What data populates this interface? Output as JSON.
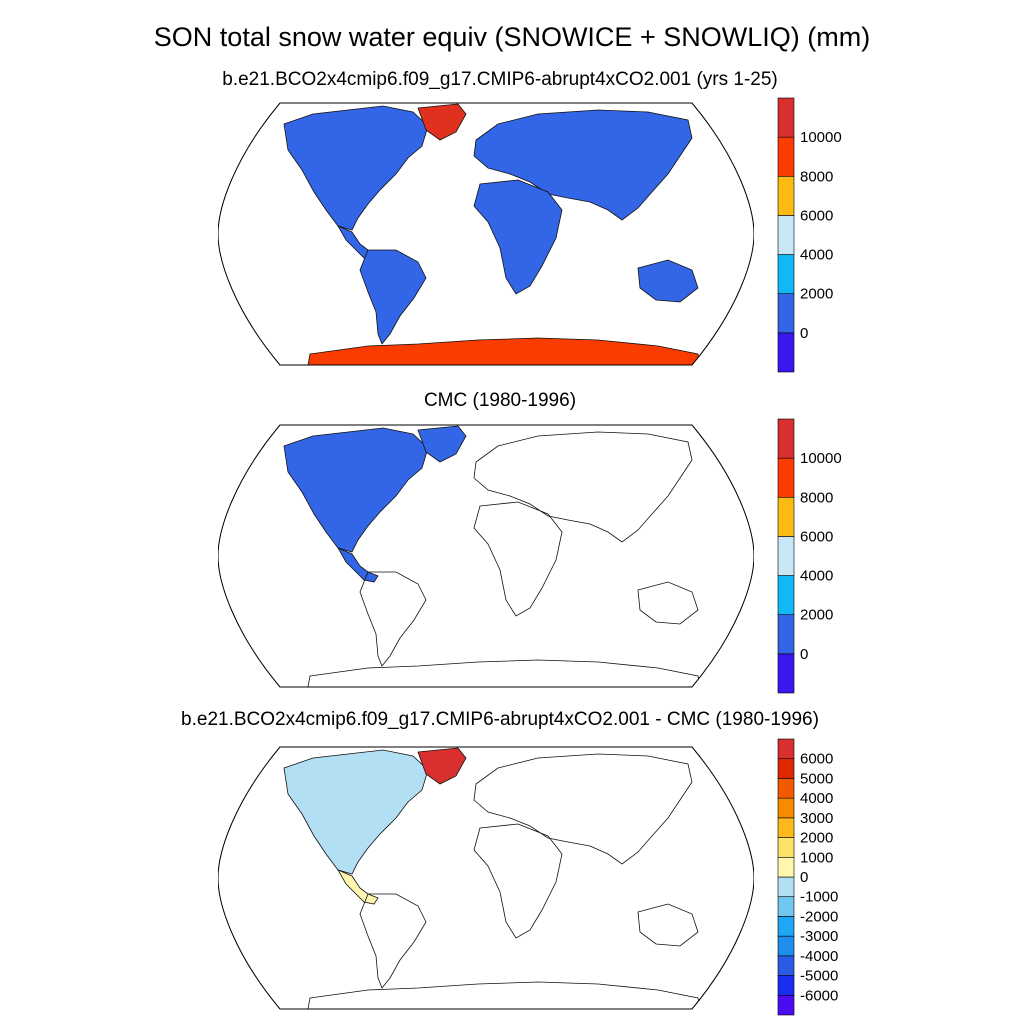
{
  "title": "SON total snow water equiv (SNOWICE + SNOWLIQ) (mm)",
  "panels": [
    {
      "title": "b.e21.BCO2x4cmip6.f09_g17.CMIP6-abrupt4xCO2.001 (yrs 1-25)",
      "colorbar": {
        "colors": [
          "#3a16f0",
          "#3366e6",
          "#12b8f5",
          "#c8e6f6",
          "#fbbb12",
          "#fa3c00",
          "#d92f2f"
        ],
        "labels": [
          "0",
          "2000",
          "4000",
          "6000",
          "8000",
          "10000"
        ]
      }
    },
    {
      "title": "CMC (1980-1996)",
      "colorbar": {
        "colors": [
          "#3a16f0",
          "#3366e6",
          "#12b8f5",
          "#c8e6f6",
          "#fbbb12",
          "#fa3c00",
          "#d92f2f"
        ],
        "labels": [
          "0",
          "2000",
          "4000",
          "6000",
          "8000",
          "10000"
        ]
      }
    },
    {
      "title": "b.e21.BCO2x4cmip6.f09_g17.CMIP6-abrupt4xCO2.001 - CMC (1980-1996)",
      "colorbar": {
        "colors": [
          "#4b0cf2",
          "#1a2ef0",
          "#2b5ce8",
          "#1f8fee",
          "#1ea7f5",
          "#70c7f2",
          "#b3dff4",
          "#fff7b0",
          "#fde26a",
          "#fcb91c",
          "#f78b00",
          "#f25a00",
          "#e02800",
          "#d92f2f"
        ],
        "labels": [
          "-6000",
          "-5000",
          "-4000",
          "-3000",
          "-2000",
          "-1000",
          "0",
          "1000",
          "2000",
          "3000",
          "4000",
          "5000",
          "6000"
        ]
      }
    }
  ],
  "colors": {
    "land_model": "#3366e6",
    "greenland_model": "#e0301e",
    "antarctica_model": "#fa3c00",
    "diff_na": "#b3dff4",
    "diff_warm": "#fff7b0",
    "diff_greenland": "#d92f2f"
  }
}
